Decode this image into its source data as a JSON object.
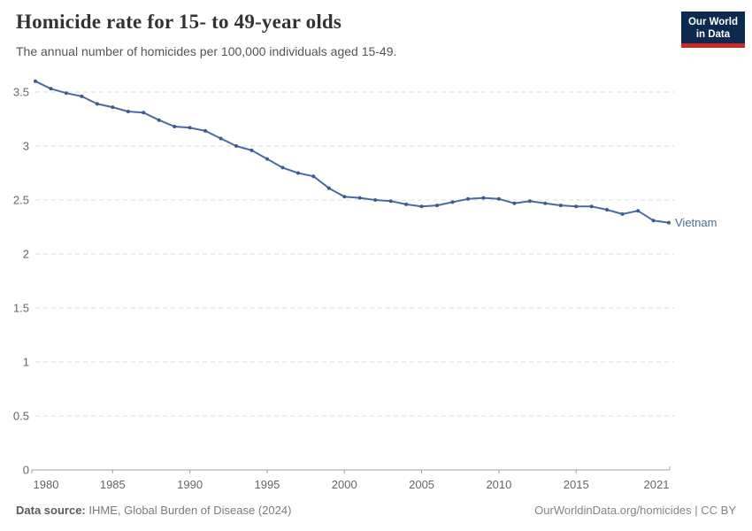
{
  "header": {
    "title": "Homicide rate for 15- to 49-year olds",
    "subtitle": "The annual number of homicides per 100,000 individuals aged 15-49.",
    "logo": {
      "line1": "Our World",
      "line2": "in Data",
      "bg_color": "#0c2950",
      "accent_color": "#cc2a26"
    }
  },
  "chart_data": {
    "type": "line",
    "title": "Homicide rate for 15- to 49-year olds",
    "subtitle": "The annual number of homicides per 100,000 individuals aged 15-49.",
    "xlabel": "",
    "ylabel": "",
    "grid": "horizontal-dashed",
    "legend_position": "end-of-line-label",
    "x_ticks": [
      1980,
      1985,
      1990,
      1995,
      2000,
      2005,
      2010,
      2015,
      2021
    ],
    "y_ticks": [
      0,
      0.5,
      1,
      1.5,
      2,
      2.5,
      3,
      3.5
    ],
    "xlim": [
      1980,
      2021
    ],
    "ylim": [
      0,
      3.6
    ],
    "axis_label_color": "#666666",
    "grid_color": "#dcdcdc",
    "axis_color": "#a0a0a0",
    "x": [
      1980,
      1981,
      1982,
      1983,
      1984,
      1985,
      1986,
      1987,
      1988,
      1989,
      1990,
      1991,
      1992,
      1993,
      1994,
      1995,
      1996,
      1997,
      1998,
      1999,
      2000,
      2001,
      2002,
      2003,
      2004,
      2005,
      2006,
      2007,
      2008,
      2009,
      2010,
      2011,
      2012,
      2013,
      2014,
      2015,
      2016,
      2017,
      2018,
      2019,
      2020,
      2021
    ],
    "series": [
      {
        "name": "Vietnam",
        "color": "#4c6a9c",
        "marker_color": "#3d5a8f",
        "values": [
          3.6,
          3.53,
          3.49,
          3.46,
          3.39,
          3.36,
          3.32,
          3.31,
          3.24,
          3.18,
          3.17,
          3.14,
          3.07,
          3.0,
          2.96,
          2.88,
          2.8,
          2.75,
          2.72,
          2.61,
          2.53,
          2.52,
          2.5,
          2.49,
          2.46,
          2.44,
          2.45,
          2.48,
          2.51,
          2.52,
          2.51,
          2.47,
          2.49,
          2.47,
          2.45,
          2.44,
          2.44,
          2.41,
          2.37,
          2.4,
          2.31,
          2.29
        ]
      }
    ]
  },
  "footer": {
    "source_label": "Data source:",
    "source_value": " IHME, Global Burden of Disease (2024)",
    "credit": "OurWorldinData.org/homicides | CC BY"
  }
}
